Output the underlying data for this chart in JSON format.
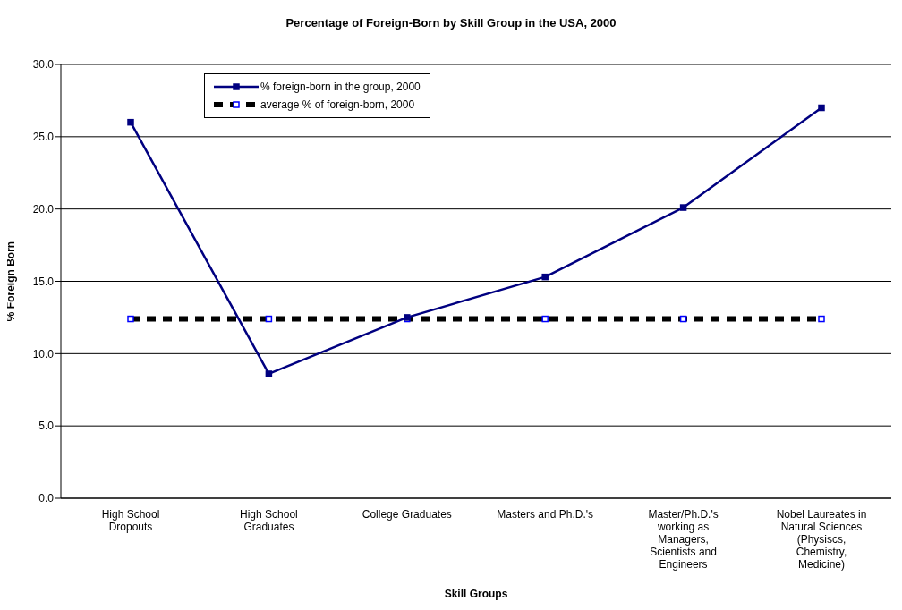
{
  "chart_data": {
    "type": "line",
    "title": "Percentage of Foreign-Born by Skill Group in the USA, 2000",
    "xlabel": "Skill Groups",
    "ylabel": "% Foreign Born",
    "categories": [
      "High School Dropouts",
      "High School Graduates",
      "College Graduates",
      "Masters and Ph.D.'s",
      "Master/Ph.D.'s working as Managers, Scientists and Engineers",
      "Nobel Laureates in Natural Sciences (Physiscs, Chemistry, Medicine)"
    ],
    "series": [
      {
        "name": "% foreign-born in the group, 2000",
        "color": "#000080",
        "values": [
          26.0,
          8.6,
          12.5,
          15.3,
          20.1,
          27.0
        ],
        "marker": "square",
        "line_style": "solid"
      },
      {
        "name": "average % of foreign-born, 2000",
        "color": "#000000",
        "values": [
          12.4,
          12.4,
          12.4,
          12.4,
          12.4,
          12.4
        ],
        "marker": "square",
        "line_style": "dashed"
      }
    ],
    "ylim": [
      0,
      30
    ],
    "yticks": [
      {
        "value": 0,
        "label": "0.0"
      },
      {
        "value": 5,
        "label": "5.0"
      },
      {
        "value": 10,
        "label": "10.0"
      },
      {
        "value": 15,
        "label": "15.0"
      },
      {
        "value": 20,
        "label": "20.0"
      },
      {
        "value": 25,
        "label": "25.0"
      },
      {
        "value": 30,
        "label": "30.0"
      }
    ],
    "grid": "y",
    "legend": "top left"
  }
}
